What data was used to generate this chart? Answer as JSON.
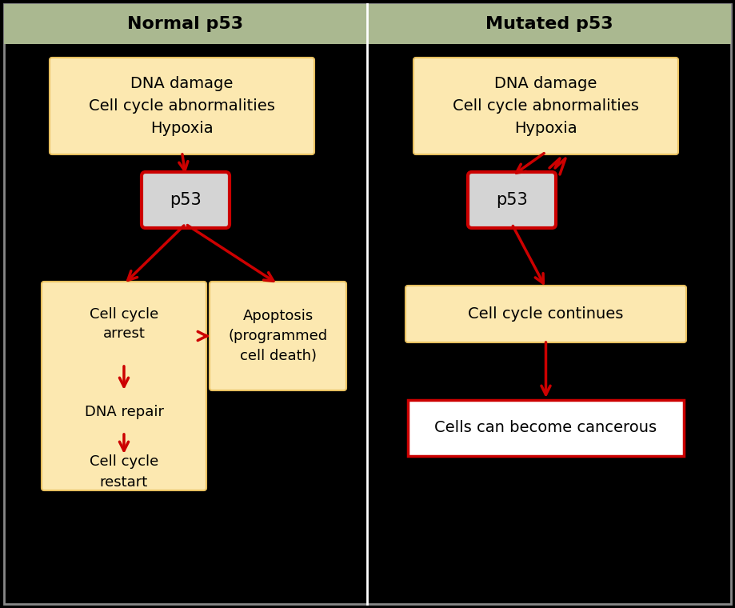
{
  "fig_width": 9.19,
  "fig_height": 7.6,
  "bg_color": "#000000",
  "header_bg": "#aab890",
  "header_text_color": "#000000",
  "header_fontsize": 16,
  "box_fill_yellow": "#fce8b0",
  "box_fill_gray": "#d4d4d4",
  "box_fill_white": "#ffffff",
  "box_edge_red": "#cc0000",
  "box_edge_yellow": "#e8c060",
  "arrow_color": "#cc0000",
  "text_color": "#000000",
  "divider_color": "#ffffff",
  "outer_border_color": "#888888",
  "left_header": "Normal p53",
  "right_header": "Mutated p53",
  "dna_text": "DNA damage\nCell cycle abnormalities\nHypoxia",
  "left_p53": "p53",
  "right_p53": "p53",
  "left_arrest_title": "Cell cycle\narrest",
  "left_dna_repair": "DNA repair",
  "left_restart": "Cell cycle\nrestart",
  "left_apoptosis_box": "Apoptosis\n(programmed\ncell death)",
  "right_continues_box": "Cell cycle continues",
  "right_cancerous_box": "Cells can become cancerous"
}
